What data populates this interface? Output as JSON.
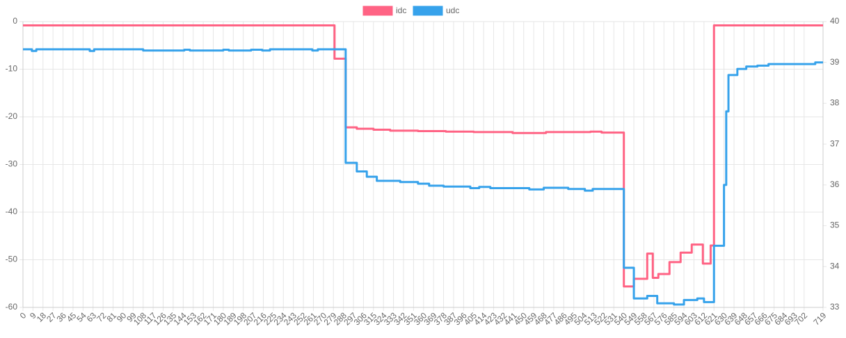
{
  "chart_data": {
    "type": "line",
    "stepped": true,
    "grid": true,
    "legend": "top",
    "xlim": [
      0,
      719
    ],
    "xticks": [
      0,
      9,
      18,
      27,
      36,
      45,
      54,
      63,
      72,
      81,
      90,
      99,
      108,
      117,
      126,
      135,
      144,
      153,
      162,
      171,
      180,
      189,
      198,
      207,
      216,
      225,
      234,
      243,
      252,
      261,
      270,
      279,
      288,
      297,
      306,
      315,
      324,
      333,
      342,
      351,
      360,
      369,
      378,
      387,
      396,
      405,
      414,
      423,
      432,
      441,
      450,
      459,
      468,
      477,
      486,
      495,
      504,
      513,
      522,
      531,
      540,
      549,
      558,
      567,
      576,
      585,
      594,
      603,
      612,
      621,
      630,
      639,
      648,
      657,
      666,
      675,
      684,
      693,
      702,
      719
    ],
    "ylim": [
      -60,
      0
    ],
    "yticks": [
      -60,
      -50,
      -40,
      -30,
      -20,
      -10,
      0
    ],
    "y2lim": [
      33,
      40
    ],
    "y2ticks": [
      33,
      34,
      35,
      36,
      37,
      38,
      39,
      40
    ],
    "series": [
      {
        "name": "idc",
        "color": "#ff6384",
        "x": [
          0,
          280,
          290,
          300,
          315,
          330,
          355,
          380,
          405,
          440,
          470,
          510,
          520,
          540,
          549,
          561,
          566,
          571,
          581,
          591,
          601,
          611,
          618,
          621,
          719
        ],
        "values": [
          -0.8,
          -7.8,
          -22.2,
          -22.5,
          -22.7,
          -22.9,
          -23.0,
          -23.1,
          -23.2,
          -23.4,
          -23.2,
          -23.1,
          -23.3,
          -55.6,
          -54.0,
          -48.7,
          -53.8,
          -53.0,
          -50.5,
          -48.5,
          -46.8,
          -50.8,
          -47.0,
          -0.8,
          -0.8
        ]
      },
      {
        "name": "udc",
        "color": "#36a2eb",
        "axis": "y2",
        "x": [
          0,
          8,
          12,
          60,
          64,
          108,
          145,
          150,
          180,
          185,
          205,
          215,
          222,
          260,
          265,
          290,
          300,
          309,
          318,
          339,
          355,
          365,
          378,
          402,
          410,
          420,
          455,
          468,
          490,
          505,
          512,
          540,
          549,
          561,
          570,
          585,
          594,
          606,
          612,
          621,
          630,
          632,
          634,
          642,
          650,
          660,
          670,
          712,
          719
        ],
        "values": [
          39.32,
          39.28,
          39.32,
          39.28,
          39.32,
          39.29,
          39.31,
          39.29,
          39.31,
          39.29,
          39.31,
          39.29,
          39.32,
          39.29,
          39.32,
          36.54,
          36.33,
          36.2,
          36.1,
          36.07,
          36.03,
          35.98,
          35.96,
          35.92,
          35.95,
          35.92,
          35.89,
          35.93,
          35.9,
          35.86,
          35.9,
          33.97,
          33.22,
          33.28,
          33.1,
          33.07,
          33.18,
          33.22,
          33.13,
          34.51,
          36.0,
          37.8,
          38.69,
          38.84,
          38.9,
          38.92,
          38.96,
          39.0,
          39.0
        ]
      }
    ]
  }
}
